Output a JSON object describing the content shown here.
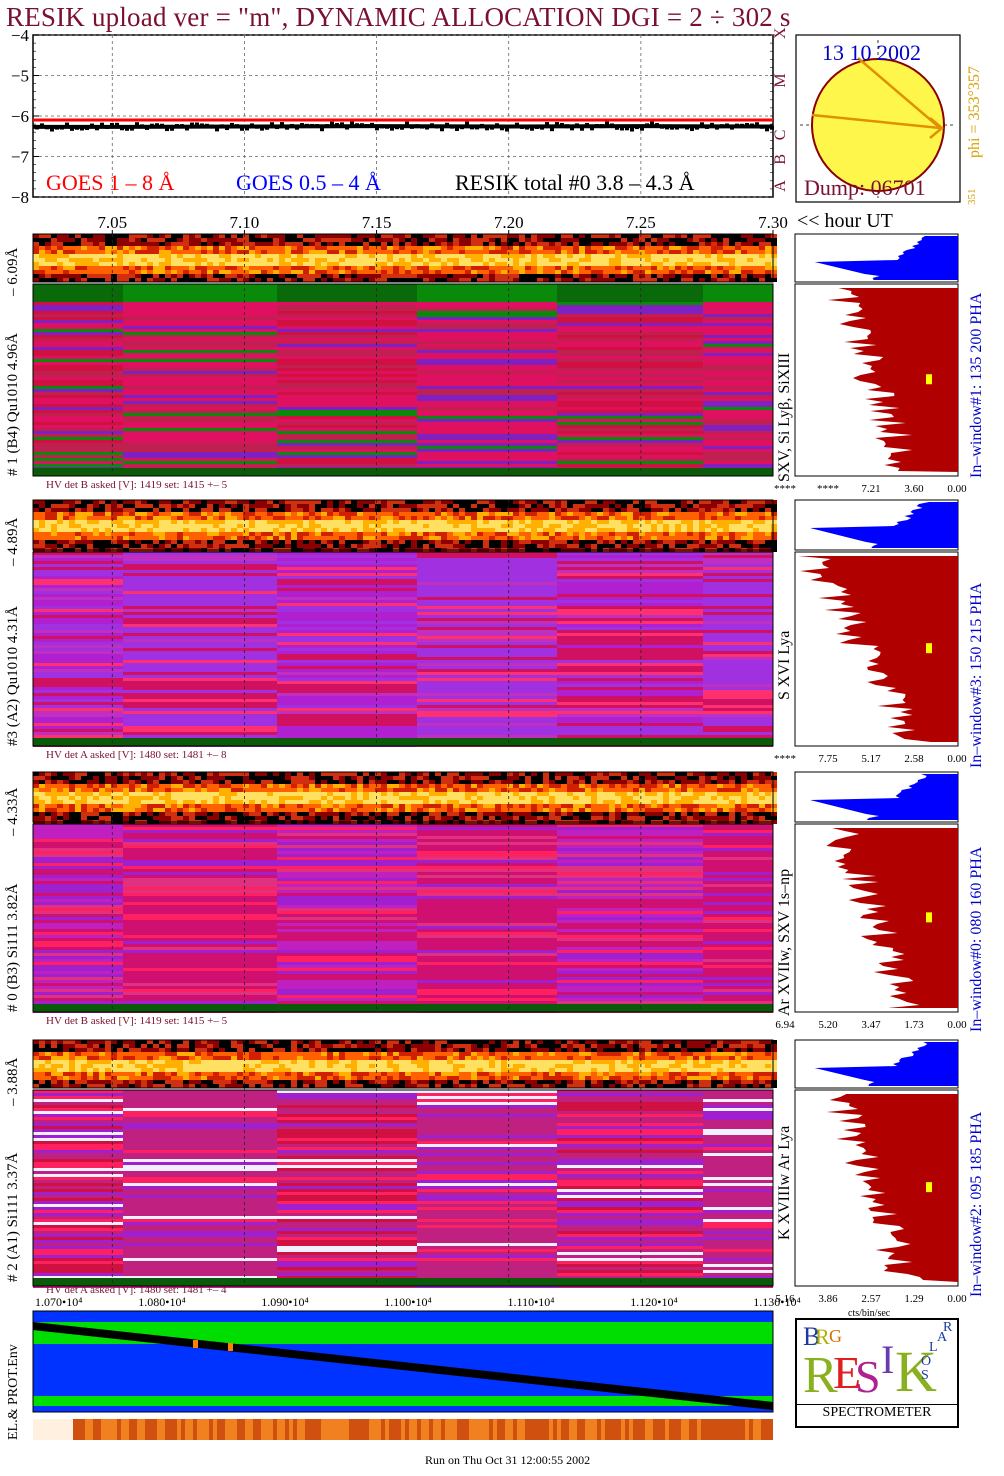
{
  "header": {
    "title": "RESIK upload ver = \"m\", DYNAMIC ALLOCATION  DGI =   2 ÷ 302 s"
  },
  "goes_panel": {
    "legend": {
      "goes_long": "GOES 1 – 8 Å",
      "goes_short": "GOES 0.5 – 4 Å",
      "resik_total": "RESIK total #0  3.8 – 4.3 Å"
    },
    "class_letters": [
      "A",
      "B",
      "C",
      "M",
      "X"
    ],
    "colors": {
      "goes_long": "#ff0000",
      "goes_short": "#0000ff",
      "resik_total": "#000000"
    }
  },
  "sun_panel": {
    "date": "13 10 2002",
    "dump": "Dump: 06701",
    "phi_label": "phi = 353°357",
    "phi_small": "351"
  },
  "time_axis": {
    "ticks": [
      "7.05",
      "7.10",
      "7.15",
      "7.20",
      "7.25",
      "7.30"
    ],
    "unit_label": "<< hour UT"
  },
  "channels": [
    {
      "id": "1",
      "lower_label": "# 1 (B4) Qu1010 4.96Å",
      "upper_label": "– 6.09Å",
      "line_label": "SXV, Si Lyβ, SiXIII",
      "window_label": "In–window#1:  135 200 PHA",
      "hv_text": "HV det B asked [V]:  1419 set:  1415  +–    5",
      "spectrum_ticks": [
        "****",
        "****",
        "7.21",
        "3.60",
        "0.00"
      ]
    },
    {
      "id": "3",
      "lower_label": "#3 (A2) Qu1010  4.31Å",
      "upper_label": "– 4.89Å",
      "line_label": "S XVI Lya",
      "window_label": "In–window#3:  150 215 PHA",
      "hv_text": "HV det A asked [V]:  1480 set:  1481  +–    8",
      "spectrum_ticks": [
        "****",
        "7.75",
        "5.17",
        "2.58",
        "0.00"
      ]
    },
    {
      "id": "0",
      "lower_label": "# 0 (B3) Si111  3.82Å",
      "upper_label": "– 4.33Å",
      "line_label": "Ar XVIIw,  SXV 1s–np",
      "window_label": "In–window#0:  080 160 PHA",
      "hv_text": "HV det B asked [V]:  1419 set:  1415  +–    5",
      "spectrum_ticks": [
        "6.94",
        "5.20",
        "3.47",
        "1.73",
        "0.00"
      ]
    },
    {
      "id": "2",
      "lower_label": "# 2 (A1) Si111  3.37Å",
      "upper_label": "– 3.88Å",
      "line_label": "K XVIIIw  Ar Lya",
      "window_label": "In–window#2:  095 185 PHA",
      "hv_text": "HV det A asked [V]:  1480 set:  1481  +–    4",
      "spectrum_ticks": [
        "5.16",
        "3.86",
        "2.57",
        "1.29",
        "0.00"
      ]
    }
  ],
  "spectrum_axis_unit": "cts/bin/sec",
  "bottom_panel": {
    "side_label": "EL.& PROT.Env",
    "ticks": [
      "1.070•10⁴",
      "1.080•10⁴",
      "1.090•10⁴",
      "1.100•10⁴",
      "1.110•10⁴",
      "1.120•10⁴",
      "1.130•10⁴"
    ]
  },
  "logo": {
    "letters": [
      "B",
      "R",
      "G",
      "R",
      "E",
      "S",
      "I",
      "K",
      "S",
      "O",
      "L",
      "A",
      "R"
    ],
    "caption": "SPECTROMETER"
  },
  "footer": "Run on Thu Oct 31 12:00:55 2002",
  "chart_data": {
    "type": "line",
    "title": "RESIK upload ver = \"m\", DYNAMIC ALLOCATION  DGI =   2 ÷ 302 s",
    "x": [
      7.02,
      7.05,
      7.1,
      7.15,
      7.2,
      7.25,
      7.3
    ],
    "xlim": [
      7.02,
      7.3
    ],
    "ylim": [
      -8,
      -4
    ],
    "yticks": [
      -4,
      -5,
      -6,
      -7,
      -8
    ],
    "series": [
      {
        "name": "GOES 1 – 8 Å",
        "values": [
          -6.1,
          -6.1,
          -6.1,
          -6.1,
          -6.1,
          -6.1,
          -6.1
        ]
      },
      {
        "name": "RESIK total #0  3.8 – 4.3 Å",
        "values": [
          -6.27,
          -6.27,
          -6.26,
          -6.25,
          -6.26,
          -6.25,
          -6.26
        ]
      }
    ]
  }
}
